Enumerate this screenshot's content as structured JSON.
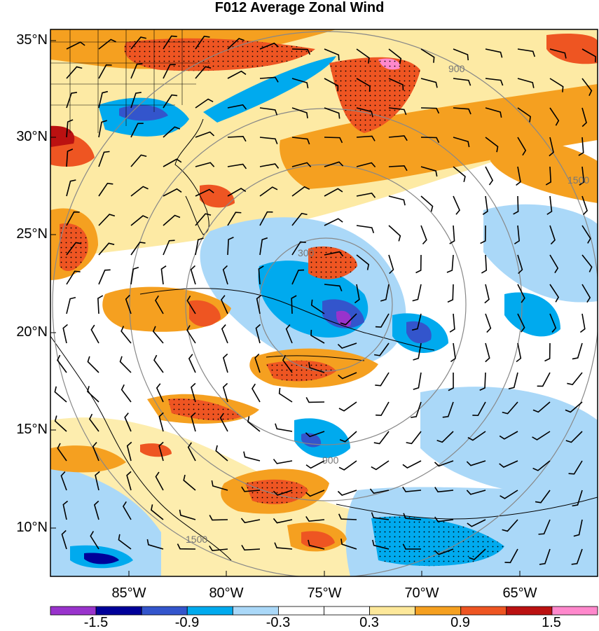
{
  "title": "F012 Average Zonal Wind",
  "lat_labels": [
    "35°N",
    "30°N",
    "25°N",
    "20°N",
    "15°N",
    "10°N"
  ],
  "lon_labels": [
    "85°W",
    "80°W",
    "75°W",
    "70°W",
    "65°W"
  ],
  "colorbar": {
    "labels": [
      "-1.5",
      "-0.9",
      "-0.3",
      "0.3",
      "0.9",
      "1.5"
    ],
    "colors": [
      "#9933cc",
      "#000099",
      "#3355cc",
      "#00aaee",
      "#aad8f8",
      "#ffffff",
      "#ffffff",
      "#fde89a",
      "#f5a020",
      "#ee5522",
      "#bb1111",
      "#ff88cc"
    ]
  },
  "range_ring_labels": [
    "300",
    "900",
    "1500"
  ],
  "map": {
    "lon_range": [
      -90,
      -62
    ],
    "lat_range": [
      8,
      36
    ],
    "range_ring_center": {
      "lon": -74.8,
      "lat": 21.3
    }
  }
}
